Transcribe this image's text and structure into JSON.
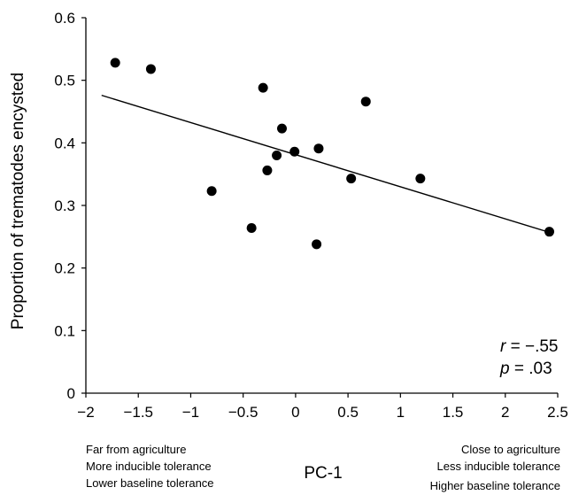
{
  "chart_data": {
    "type": "scatter",
    "xlabel": "PC-1",
    "ylabel": "Proportion of trematodes encysted",
    "xlim": [
      -2,
      2.5
    ],
    "ylim": [
      0,
      0.6
    ],
    "x_ticks": [
      -2,
      -1.5,
      -1,
      -0.5,
      0,
      0.5,
      1,
      1.5,
      2,
      2.5
    ],
    "x_tick_labels": [
      "−2",
      "−1.5",
      "−1",
      "−0.5",
      "0",
      "0.5",
      "1",
      "1.5",
      "2",
      "2.5"
    ],
    "y_ticks": [
      0,
      0.1,
      0.2,
      0.3,
      0.4,
      0.5,
      0.6
    ],
    "y_tick_labels": [
      "0",
      "0.1",
      "0.2",
      "0.3",
      "0.4",
      "0.5",
      "0.6"
    ],
    "grid": false,
    "points": [
      {
        "x": -1.72,
        "y": 0.528
      },
      {
        "x": -1.38,
        "y": 0.518
      },
      {
        "x": -0.8,
        "y": 0.323
      },
      {
        "x": -0.42,
        "y": 0.264
      },
      {
        "x": -0.31,
        "y": 0.488
      },
      {
        "x": -0.27,
        "y": 0.356
      },
      {
        "x": -0.18,
        "y": 0.38
      },
      {
        "x": -0.13,
        "y": 0.423
      },
      {
        "x": -0.01,
        "y": 0.386
      },
      {
        "x": 0.2,
        "y": 0.238
      },
      {
        "x": 0.22,
        "y": 0.391
      },
      {
        "x": 0.53,
        "y": 0.343
      },
      {
        "x": 0.67,
        "y": 0.466
      },
      {
        "x": 1.19,
        "y": 0.343
      },
      {
        "x": 2.42,
        "y": 0.258
      }
    ],
    "trend_line": {
      "x1": -1.85,
      "y1": 0.476,
      "x2": 2.42,
      "y2": 0.257
    },
    "stats": {
      "r_var": "r",
      "r_value": " = −.55",
      "p_var": "p",
      "p_value": " = .03"
    },
    "annotations": {
      "left": [
        "Far from agriculture",
        "More inducible tolerance",
        "Lower baseline tolerance"
      ],
      "right": [
        "Close to agriculture",
        "Less inducible tolerance",
        "Higher baseline tolerance"
      ]
    }
  }
}
